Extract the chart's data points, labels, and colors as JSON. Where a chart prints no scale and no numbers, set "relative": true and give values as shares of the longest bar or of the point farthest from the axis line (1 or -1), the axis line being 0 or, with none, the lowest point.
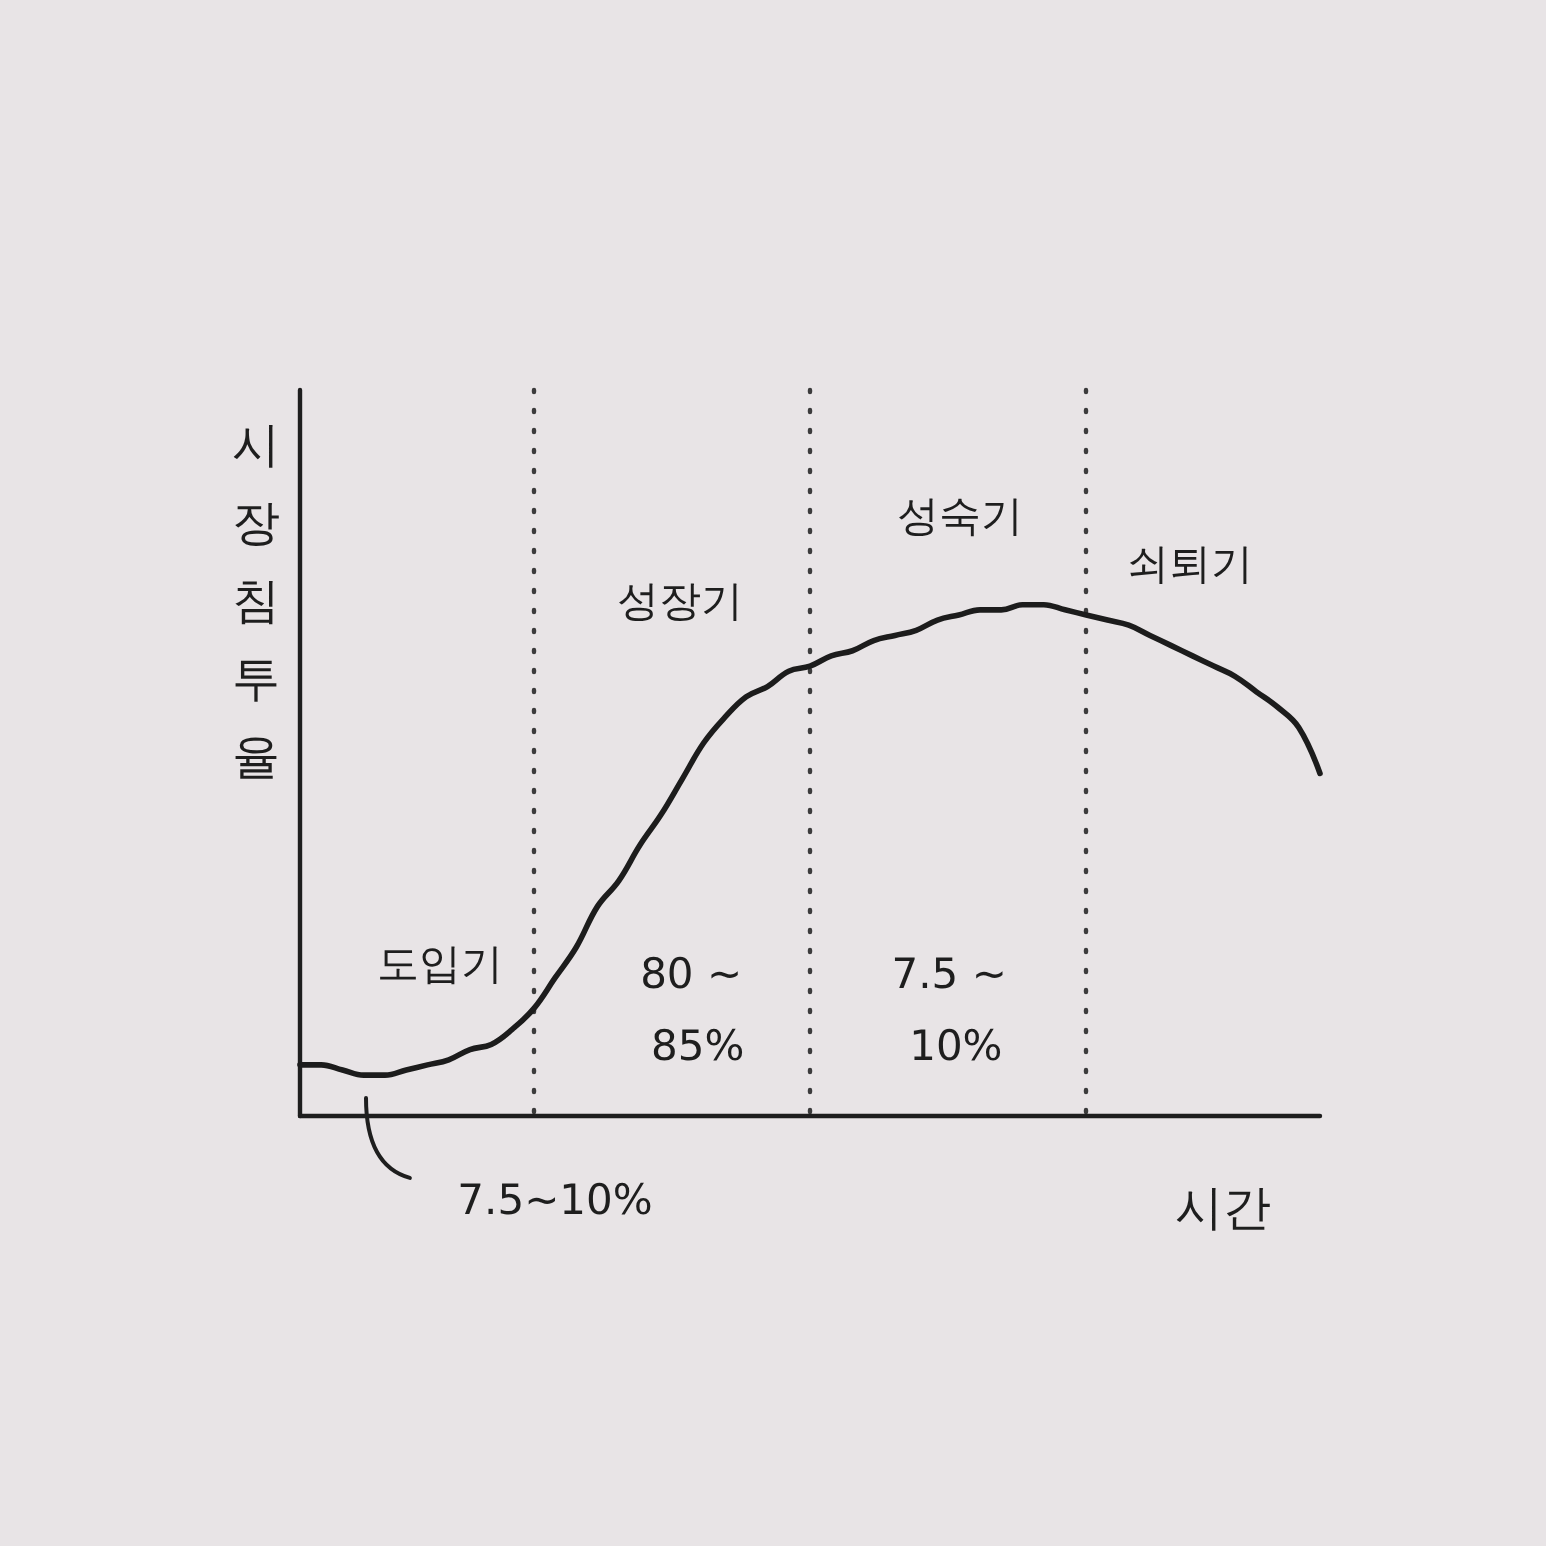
{
  "chart_data": {
    "type": "line",
    "relative": true,
    "ylabel": "시장침투율",
    "xlabel": "시간",
    "categories": [
      null,
      null,
      null,
      null,
      null,
      null,
      null,
      null,
      null,
      null,
      null,
      null,
      null,
      null,
      null,
      null,
      null,
      null,
      null,
      null,
      null,
      null,
      null,
      null,
      null,
      null,
      null,
      null,
      null,
      null,
      null,
      null,
      null,
      null,
      null,
      null,
      null,
      null,
      null,
      null,
      null,
      null,
      null,
      null,
      null,
      null,
      null,
      null,
      null
    ],
    "series": [
      {
        "color": "#1c1c1c",
        "values": [
          0.1,
          0.1,
          0.09,
          0.08,
          0.08,
          0.09,
          0.1,
          0.11,
          0.13,
          0.14,
          0.17,
          0.21,
          0.27,
          0.33,
          0.41,
          0.46,
          0.53,
          0.59,
          0.66,
          0.73,
          0.78,
          0.82,
          0.84,
          0.87,
          0.88,
          0.9,
          0.91,
          0.93,
          0.94,
          0.95,
          0.97,
          0.98,
          0.99,
          0.99,
          1,
          1,
          0.99,
          0.98,
          0.97,
          0.96,
          0.94,
          0.92,
          0.9,
          0.88,
          0.86,
          0.83,
          0.8,
          0.76,
          0.67
        ]
      }
    ],
    "marker": "none",
    "line_style": "solid",
    "grid": "x",
    "annotations": [
      "도입기",
      "성장기",
      "성숙기",
      "쇠퇴기",
      "80 ~ 85%",
      "7.5 ~ 10%",
      "7.5~10%"
    ]
  }
}
